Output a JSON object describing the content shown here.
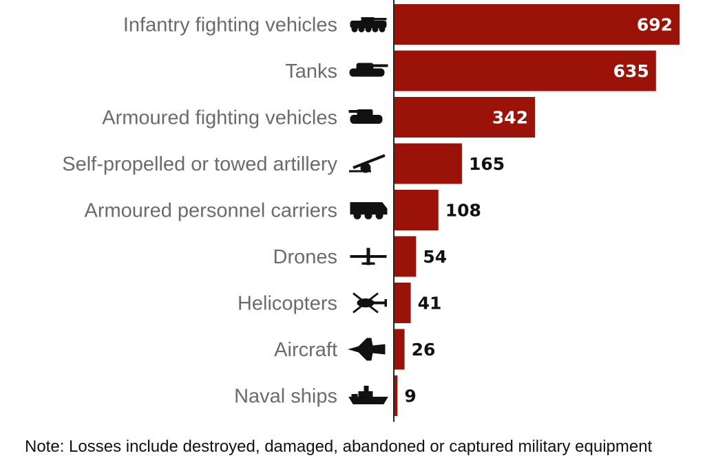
{
  "chart_data": {
    "type": "bar",
    "orientation": "horizontal",
    "categories": [
      "Infantry fighting vehicles",
      "Tanks",
      "Armoured fighting vehicles",
      "Self-propelled or towed artillery",
      "Armoured personnel carriers",
      "Drones",
      "Helicopters",
      "Aircraft",
      "Naval ships"
    ],
    "values": [
      692,
      635,
      342,
      165,
      108,
      54,
      41,
      26,
      9
    ],
    "icons": [
      "infantry-fighting-vehicle-icon",
      "tank-icon",
      "armoured-fighting-vehicle-icon",
      "artillery-icon",
      "armoured-personnel-carrier-icon",
      "drone-icon",
      "helicopter-icon",
      "aircraft-icon",
      "naval-ship-icon"
    ],
    "title": "",
    "xlabel": "",
    "ylabel": "",
    "xlim": [
      0,
      692
    ],
    "grid": false,
    "legend": "none"
  },
  "colors": {
    "bar": "#9b1308",
    "label_inside": "#ffffff",
    "label_outside": "#111111",
    "category_text": "#6b6b6b",
    "axis": "#222222"
  },
  "note": "Note: Losses include destroyed, damaged, abandoned or captured military equipment"
}
